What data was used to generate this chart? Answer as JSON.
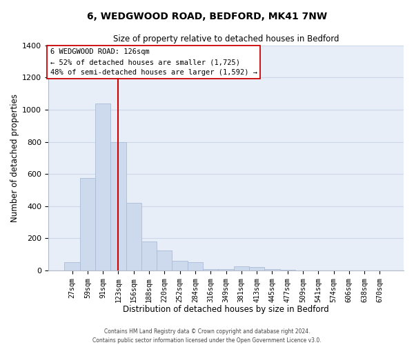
{
  "title": "6, WEDGWOOD ROAD, BEDFORD, MK41 7NW",
  "subtitle": "Size of property relative to detached houses in Bedford",
  "xlabel": "Distribution of detached houses by size in Bedford",
  "ylabel": "Number of detached properties",
  "bar_labels": [
    "27sqm",
    "59sqm",
    "91sqm",
    "123sqm",
    "156sqm",
    "188sqm",
    "220sqm",
    "252sqm",
    "284sqm",
    "316sqm",
    "349sqm",
    "381sqm",
    "413sqm",
    "445sqm",
    "477sqm",
    "509sqm",
    "541sqm",
    "574sqm",
    "606sqm",
    "638sqm",
    "670sqm"
  ],
  "bar_values": [
    50,
    575,
    1040,
    800,
    420,
    180,
    125,
    62,
    50,
    10,
    10,
    25,
    20,
    10,
    5,
    0,
    0,
    0,
    0,
    0,
    0
  ],
  "bar_color": "#cdd9ed",
  "bar_edge_color": "#aabcd6",
  "vline_x_idx": 3,
  "vline_color": "#cc0000",
  "ylim": [
    0,
    1400
  ],
  "yticks": [
    0,
    200,
    400,
    600,
    800,
    1000,
    1200,
    1400
  ],
  "annotation_title": "6 WEDGWOOD ROAD: 126sqm",
  "annotation_line1": "← 52% of detached houses are smaller (1,725)",
  "annotation_line2": "48% of semi-detached houses are larger (1,592) →",
  "annotation_box_color": "#ffffff",
  "annotation_box_edge": "#cc0000",
  "footer1": "Contains HM Land Registry data © Crown copyright and database right 2024.",
  "footer2": "Contains public sector information licensed under the Open Government Licence v3.0.",
  "background_color": "#ffffff",
  "grid_color": "#ccd8e8",
  "plot_bg_color": "#e8eef8"
}
